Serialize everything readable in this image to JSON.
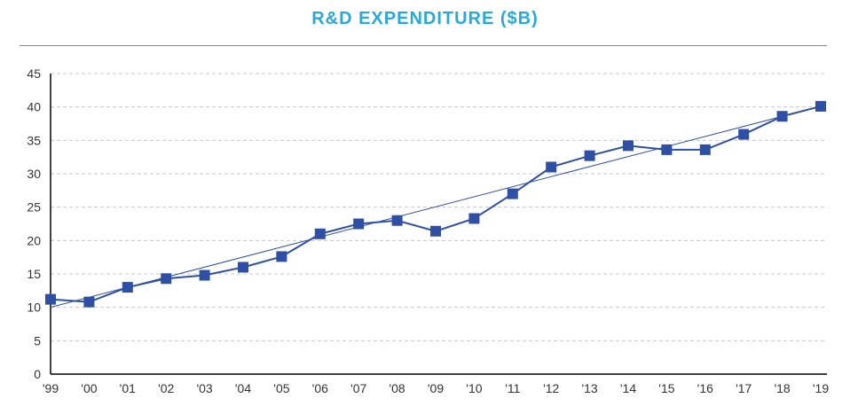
{
  "chart_data": {
    "type": "line",
    "title": "R&D EXPENDITURE ($B)",
    "categories": [
      "'99",
      "'00",
      "'01",
      "'02",
      "'03",
      "'04",
      "'05",
      "'06",
      "'07",
      "'08",
      "'09",
      "'10",
      "'11",
      "'12",
      "'13",
      "'14",
      "'15",
      "'16",
      "'17",
      "'18",
      "'19"
    ],
    "series": [
      {
        "values": [
          11.2,
          10.8,
          13.0,
          14.3,
          14.8,
          16.0,
          17.6,
          21.0,
          22.5,
          23.0,
          21.4,
          23.3,
          27.0,
          31.0,
          32.7,
          34.2,
          33.6,
          33.6,
          35.9,
          38.6,
          40.1
        ]
      }
    ],
    "trendline": {
      "start": 10.0,
      "end": 40.1
    },
    "ylim": [
      0,
      45
    ],
    "yticks": [
      0,
      5,
      10,
      15,
      20,
      25,
      30,
      35,
      40,
      45
    ],
    "grid": true,
    "colors": {
      "title": "#29a8e0",
      "series": "#2e4fa3",
      "grid": "#c8c8c8",
      "axis": "#000000"
    }
  }
}
